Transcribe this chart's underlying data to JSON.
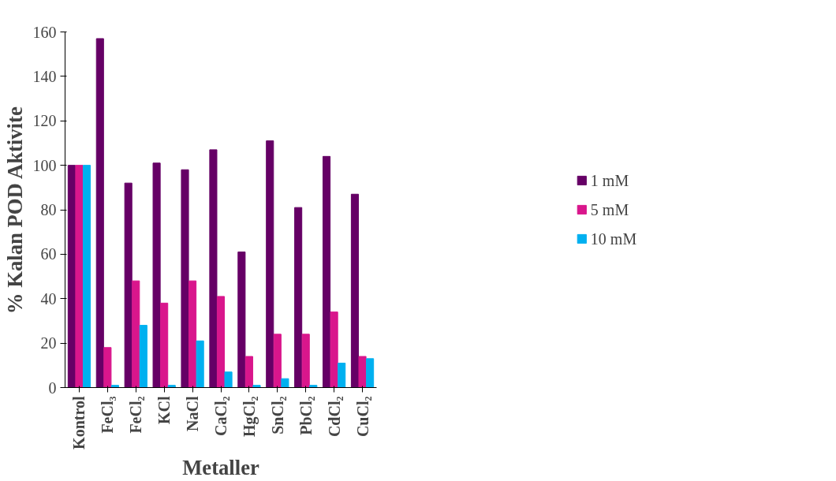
{
  "chart_data": {
    "type": "bar",
    "xlabel": "Metaller",
    "ylabel": "% Kalan POD Aktivite",
    "categories": [
      "Kontrol",
      "FeCl₃",
      "FeCl₂",
      "KCl",
      "NaCl",
      "CaCl₂",
      "HgCl₂",
      "SnCl₂",
      "PbCl₂",
      "CdCl₂",
      "CuCl₂"
    ],
    "series": [
      {
        "name": "1 mM",
        "color": "#660066",
        "values": [
          100,
          157,
          92,
          101,
          98,
          107,
          61,
          111,
          81,
          104,
          87
        ]
      },
      {
        "name": "5 mM",
        "color": "#d9168c",
        "values": [
          100,
          18,
          48,
          38,
          48,
          41,
          14,
          24,
          24,
          34,
          14
        ]
      },
      {
        "name": "10 mM",
        "color": "#00b0f0",
        "values": [
          100,
          1,
          28,
          1,
          21,
          7,
          1,
          4,
          1,
          11,
          13
        ]
      }
    ],
    "ylim": [
      0,
      160
    ],
    "yticks": [
      0,
      20,
      40,
      60,
      80,
      100,
      120,
      140,
      160
    ],
    "grid": false,
    "legend": "right"
  }
}
